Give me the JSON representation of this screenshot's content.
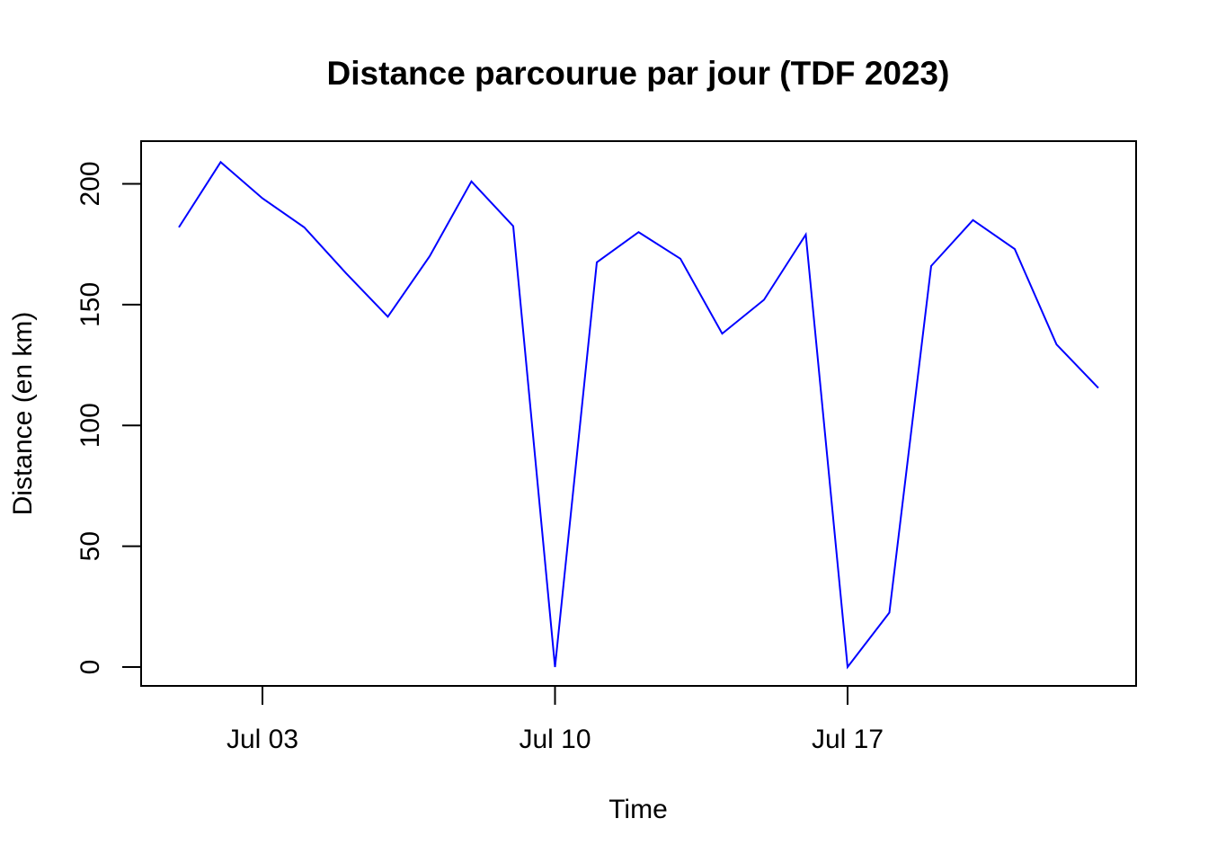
{
  "chart_data": {
    "type": "line",
    "title": "Distance parcourue par jour (TDF 2023)",
    "xlabel": "Time",
    "ylabel": "Distance (en km)",
    "x_start_date": "2023-07-01",
    "x": [
      "2023-07-01",
      "2023-07-02",
      "2023-07-03",
      "2023-07-04",
      "2023-07-05",
      "2023-07-06",
      "2023-07-07",
      "2023-07-08",
      "2023-07-09",
      "2023-07-10",
      "2023-07-11",
      "2023-07-12",
      "2023-07-13",
      "2023-07-14",
      "2023-07-15",
      "2023-07-16",
      "2023-07-17",
      "2023-07-18",
      "2023-07-19",
      "2023-07-20",
      "2023-07-21",
      "2023-07-22",
      "2023-07-23"
    ],
    "series": [
      {
        "color": "#0000ff",
        "values": [
          182,
          209,
          194,
          182,
          163,
          145,
          170,
          201,
          182.5,
          0,
          167.5,
          180,
          169,
          138,
          152,
          179,
          0,
          22.5,
          166,
          185,
          173,
          133.5,
          115.5
        ]
      }
    ],
    "x_ticks": [
      {
        "label": "Jul 03",
        "date": "2023-07-03"
      },
      {
        "label": "Jul 10",
        "date": "2023-07-10"
      },
      {
        "label": "Jul 17",
        "date": "2023-07-17"
      }
    ],
    "y_ticks": [
      {
        "label": "0",
        "value": 0
      },
      {
        "label": "50",
        "value": 50
      },
      {
        "label": "100",
        "value": 100
      },
      {
        "label": "150",
        "value": 150
      },
      {
        "label": "200",
        "value": 200
      }
    ],
    "ylim": [
      -8,
      218
    ],
    "xlim": [
      "2023-06-30",
      "2023-07-24"
    ],
    "grid": false,
    "legend": "none"
  }
}
